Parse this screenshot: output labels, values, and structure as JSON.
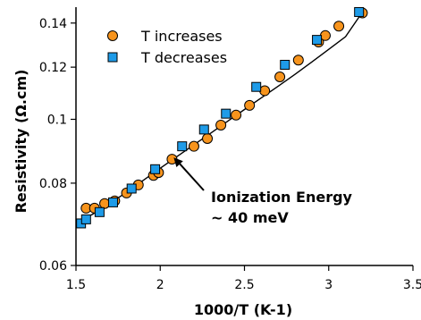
{
  "chart_data": {
    "type": "scatter",
    "title": "",
    "xlabel": "1000/T (K-1)",
    "ylabel": "Resistivity (Ω.cm)",
    "xlim": [
      1.5,
      3.5
    ],
    "ylim": [
      0.06,
      0.148
    ],
    "y_scale": "log",
    "grid": false,
    "legend_position": "top-left",
    "x_ticks": [
      "1.5",
      "2",
      "2.5",
      "3",
      "3.5"
    ],
    "y_ticks": [
      "0.06",
      "0.08",
      "0.1",
      "0.12",
      "0.14"
    ],
    "series": [
      {
        "name": "T increases",
        "marker": "circle",
        "color": "#F7941D",
        "x": [
          1.56,
          1.61,
          1.67,
          1.73,
          1.8,
          1.87,
          1.96,
          1.99,
          2.07,
          2.2,
          2.28,
          2.36,
          2.45,
          2.53,
          2.62,
          2.71,
          2.82,
          2.94,
          2.98,
          3.06,
          3.2
        ],
        "y": [
          0.0733,
          0.0733,
          0.0745,
          0.0752,
          0.0773,
          0.0795,
          0.0822,
          0.083,
          0.087,
          0.091,
          0.0935,
          0.098,
          0.1015,
          0.105,
          0.1105,
          0.116,
          0.123,
          0.131,
          0.134,
          0.1385,
          0.145
        ]
      },
      {
        "name": "T decreases",
        "marker": "square",
        "color": "#1E9BE8",
        "x": [
          1.53,
          1.56,
          1.64,
          1.72,
          1.83,
          1.97,
          2.13,
          2.26,
          2.39,
          2.57,
          2.74,
          2.93,
          3.18
        ],
        "y": [
          0.0695,
          0.0705,
          0.0723,
          0.0748,
          0.0785,
          0.084,
          0.091,
          0.0965,
          0.102,
          0.112,
          0.121,
          0.132,
          0.1455
        ]
      }
    ],
    "fit_line": {
      "x": [
        1.5,
        1.6,
        1.7,
        1.8,
        1.9,
        2.0,
        2.1,
        2.2,
        2.3,
        2.4,
        2.5,
        2.6,
        2.7,
        2.8,
        2.9,
        3.0,
        3.1,
        3.2
      ],
      "y": [
        0.0695,
        0.0718,
        0.0745,
        0.0775,
        0.0808,
        0.0843,
        0.0878,
        0.0915,
        0.0953,
        0.0993,
        0.1035,
        0.1078,
        0.1123,
        0.117,
        0.1222,
        0.1277,
        0.1335,
        0.1455
      ]
    },
    "annotation": {
      "line1": "Ionization Energy",
      "line2": "~ 40 meV",
      "arrow_target": [
        2.08,
        0.0875
      ],
      "text_anchor": [
        2.3,
        0.0795
      ]
    }
  }
}
